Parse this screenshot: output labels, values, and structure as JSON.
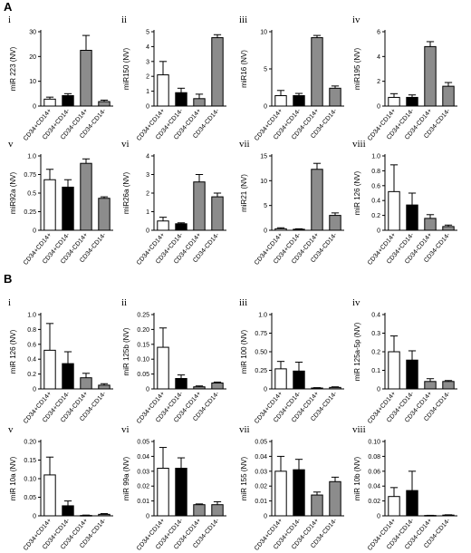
{
  "panels": [
    {
      "letter": "A",
      "charts": [
        {
          "label": "i",
          "type": "bar",
          "ylabel": "miR 223 (NV)",
          "ylim": [
            0,
            30
          ],
          "yticks": [
            "0",
            "10",
            "20",
            "30"
          ],
          "categories": [
            "CD34+CD14+",
            "CD34+CD14-",
            "CD34-CD14+",
            "CD34-CD14-"
          ],
          "values": [
            2.8,
            4.2,
            22.5,
            1.8
          ],
          "errors": [
            0.8,
            0.8,
            6,
            0.6
          ]
        },
        {
          "label": "ii",
          "type": "bar",
          "ylabel": "miR150 (NV)",
          "ylim": [
            0,
            5
          ],
          "yticks": [
            "0",
            "1",
            "2",
            "3",
            "4",
            "5"
          ],
          "categories": [
            "CD34+CD14+",
            "CD34+CD14-",
            "CD34-CD14+",
            "CD34-CD14-"
          ],
          "values": [
            2.1,
            0.9,
            0.5,
            4.6
          ],
          "errors": [
            0.9,
            0.3,
            0.3,
            0.2
          ]
        },
        {
          "label": "iii",
          "type": "bar",
          "ylabel": "miR16 (NV)",
          "ylim": [
            0,
            10
          ],
          "yticks": [
            "0",
            "5",
            "10"
          ],
          "categories": [
            "CD34+CD14+",
            "CD34+CD14-",
            "CD34-CD14+",
            "CD34-CD14-"
          ],
          "values": [
            1.4,
            1.4,
            9.2,
            2.4
          ],
          "errors": [
            0.7,
            0.3,
            0.3,
            0.3
          ]
        },
        {
          "label": "iv",
          "type": "bar",
          "ylabel": "miR195 (NV)",
          "ylim": [
            0,
            6
          ],
          "yticks": [
            "0",
            "2",
            "4",
            "6"
          ],
          "categories": [
            "CD34+CD14+",
            "CD34+CD14-",
            "CD34-CD14+",
            "CD34-CD14-"
          ],
          "values": [
            0.7,
            0.7,
            4.8,
            1.6
          ],
          "errors": [
            0.3,
            0.2,
            0.4,
            0.3
          ]
        },
        {
          "label": "v",
          "type": "bar",
          "ylabel": "miR92a (NV)",
          "ylim": [
            0,
            1.0
          ],
          "yticks": [
            "0",
            "0.25",
            "0.5",
            "0.75",
            "1.0"
          ],
          "categories": [
            "CD34+CD14+",
            "CD34+CD14-",
            "CD34-CD14+",
            "CD34-CD14-"
          ],
          "values": [
            0.68,
            0.58,
            0.9,
            0.43
          ],
          "errors": [
            0.14,
            0.1,
            0.06,
            0.02
          ]
        },
        {
          "label": "vi",
          "type": "bar",
          "ylabel": "miR26a (NV)",
          "ylim": [
            0,
            4
          ],
          "yticks": [
            "0",
            "1",
            "2",
            "3",
            "4"
          ],
          "categories": [
            "CD34+CD14+",
            "CD34+CD14-",
            "CD34-CD14+",
            "CD34-CD14-"
          ],
          "values": [
            0.5,
            0.35,
            2.6,
            1.8
          ],
          "errors": [
            0.2,
            0.05,
            0.4,
            0.2
          ]
        },
        {
          "label": "vii",
          "type": "bar",
          "ylabel": "miR21 (NV)",
          "ylim": [
            0,
            15
          ],
          "yticks": [
            "0",
            "5",
            "10",
            "15"
          ],
          "categories": [
            "CD34+CD14+",
            "CD34+CD14-",
            "CD34-CD14+",
            "CD34-CD14-"
          ],
          "values": [
            0.3,
            0.2,
            12.3,
            3.0
          ],
          "errors": [
            0.2,
            0.1,
            1.2,
            0.5
          ]
        },
        {
          "label": "viii",
          "type": "bar",
          "ylabel": "miR 126 (NV)",
          "ylim": [
            0,
            1.0
          ],
          "yticks": [
            "0",
            "0.2",
            "0.4",
            "0.6",
            "0.8",
            "1.0"
          ],
          "categories": [
            "CD34+CD14+",
            "CD34+CD14-",
            "CD34-CD14+",
            "CD34-CD14-"
          ],
          "values": [
            0.52,
            0.34,
            0.16,
            0.05
          ],
          "errors": [
            0.36,
            0.16,
            0.05,
            0.02
          ]
        }
      ]
    },
    {
      "letter": "B",
      "charts": [
        {
          "label": "i",
          "type": "bar",
          "ylabel": "miR 126 (NV)",
          "ylim": [
            0,
            1.0
          ],
          "yticks": [
            "0",
            "0.2",
            "0.4",
            "0.6",
            "0.8",
            "1.0"
          ],
          "categories": [
            "CD34+CD14+",
            "CD34+CD14-",
            "CD34-CD14+",
            "CD34-CD14-"
          ],
          "values": [
            0.52,
            0.34,
            0.15,
            0.05
          ],
          "errors": [
            0.36,
            0.16,
            0.06,
            0.02
          ]
        },
        {
          "label": "ii",
          "type": "bar",
          "ylabel": "miR 125b (NV)",
          "ylim": [
            0,
            0.25
          ],
          "yticks": [
            "0",
            "0.05",
            "0.10",
            "0.15",
            "0.20",
            "0.25"
          ],
          "categories": [
            "CD34+CD14+",
            "CD34+CD14-",
            "CD34-CD14+",
            "CD34-CD14-"
          ],
          "values": [
            0.14,
            0.035,
            0.007,
            0.02
          ],
          "errors": [
            0.065,
            0.012,
            0.003,
            0.003
          ]
        },
        {
          "label": "iii",
          "type": "bar",
          "ylabel": "miR 100 (NV)",
          "ylim": [
            0,
            1.0
          ],
          "yticks": [
            "0",
            "0.25",
            "0.50",
            "0.75",
            "1.0"
          ],
          "categories": [
            "CD34+CD14+",
            "CD34+CD14-",
            "CD34-CD14+",
            "CD34-CD14-"
          ],
          "values": [
            0.27,
            0.24,
            0.012,
            0.02
          ],
          "errors": [
            0.1,
            0.12,
            0.005,
            0.008
          ]
        },
        {
          "label": "iv",
          "type": "bar",
          "ylabel": "miR 125a-5p (NV)",
          "ylim": [
            0,
            0.4
          ],
          "yticks": [
            "0",
            "0.1",
            "0.2",
            "0.3",
            "0.4"
          ],
          "categories": [
            "CD34+CD14+",
            "CD34+CD14-",
            "CD34-CD14+",
            "CD34-CD14-"
          ],
          "values": [
            0.2,
            0.155,
            0.04,
            0.04
          ],
          "errors": [
            0.085,
            0.05,
            0.015,
            0.005
          ]
        },
        {
          "label": "v",
          "type": "bar",
          "ylabel": "miR 10a (NV)",
          "ylim": [
            0,
            0.2
          ],
          "yticks": [
            "0",
            "0.05",
            "0.10",
            "0.15",
            "0.20"
          ],
          "categories": [
            "CD34+CD14+",
            "CD34+CD14-",
            "CD34-CD14+",
            "CD34-CD14-"
          ],
          "values": [
            0.11,
            0.027,
            0.001,
            0.004
          ],
          "errors": [
            0.048,
            0.013,
            0.001,
            0.002
          ]
        },
        {
          "label": "vi",
          "type": "bar",
          "ylabel": "miR 99a (NV)",
          "ylim": [
            0,
            0.05
          ],
          "yticks": [
            "0",
            "0.01",
            "0.02",
            "0.03",
            "0.04",
            "0.05"
          ],
          "categories": [
            "CD34+CD14+",
            "CD34+CD14-",
            "CD34-CD14+",
            "CD34-CD14-"
          ],
          "values": [
            0.032,
            0.032,
            0.0075,
            0.0075
          ],
          "errors": [
            0.014,
            0.007,
            0.0005,
            0.002
          ]
        },
        {
          "label": "vii",
          "type": "bar",
          "ylabel": "miR 155 (NV)",
          "ylim": [
            0,
            0.05
          ],
          "yticks": [
            "0",
            "0.01",
            "0.02",
            "0.03",
            "0.04",
            "0.05"
          ],
          "categories": [
            "CD34+CD14+",
            "CD34+CD14-",
            "CD34-CD14+",
            "CD34-CD14-"
          ],
          "values": [
            0.03,
            0.031,
            0.014,
            0.023
          ],
          "errors": [
            0.01,
            0.007,
            0.002,
            0.003
          ]
        },
        {
          "label": "viii",
          "type": "bar",
          "ylabel": "miR 10b (NV)",
          "ylim": [
            0,
            0.1
          ],
          "yticks": [
            "0",
            "0.02",
            "0.04",
            "0.06",
            "0.08",
            "0.10"
          ],
          "categories": [
            "CD34+CD14+",
            "CD34+CD14-",
            "CD34-CD14+",
            "CD34-CD14-"
          ],
          "values": [
            0.026,
            0.034,
            0.0005,
            0.001
          ],
          "errors": [
            0.012,
            0.026,
            0.0002,
            0.0004
          ]
        }
      ]
    }
  ],
  "colors": {
    "bars": [
      "#ffffff",
      "#000000",
      "#8c8c8c",
      "#8c8c8c"
    ],
    "stroke": "#000000"
  }
}
